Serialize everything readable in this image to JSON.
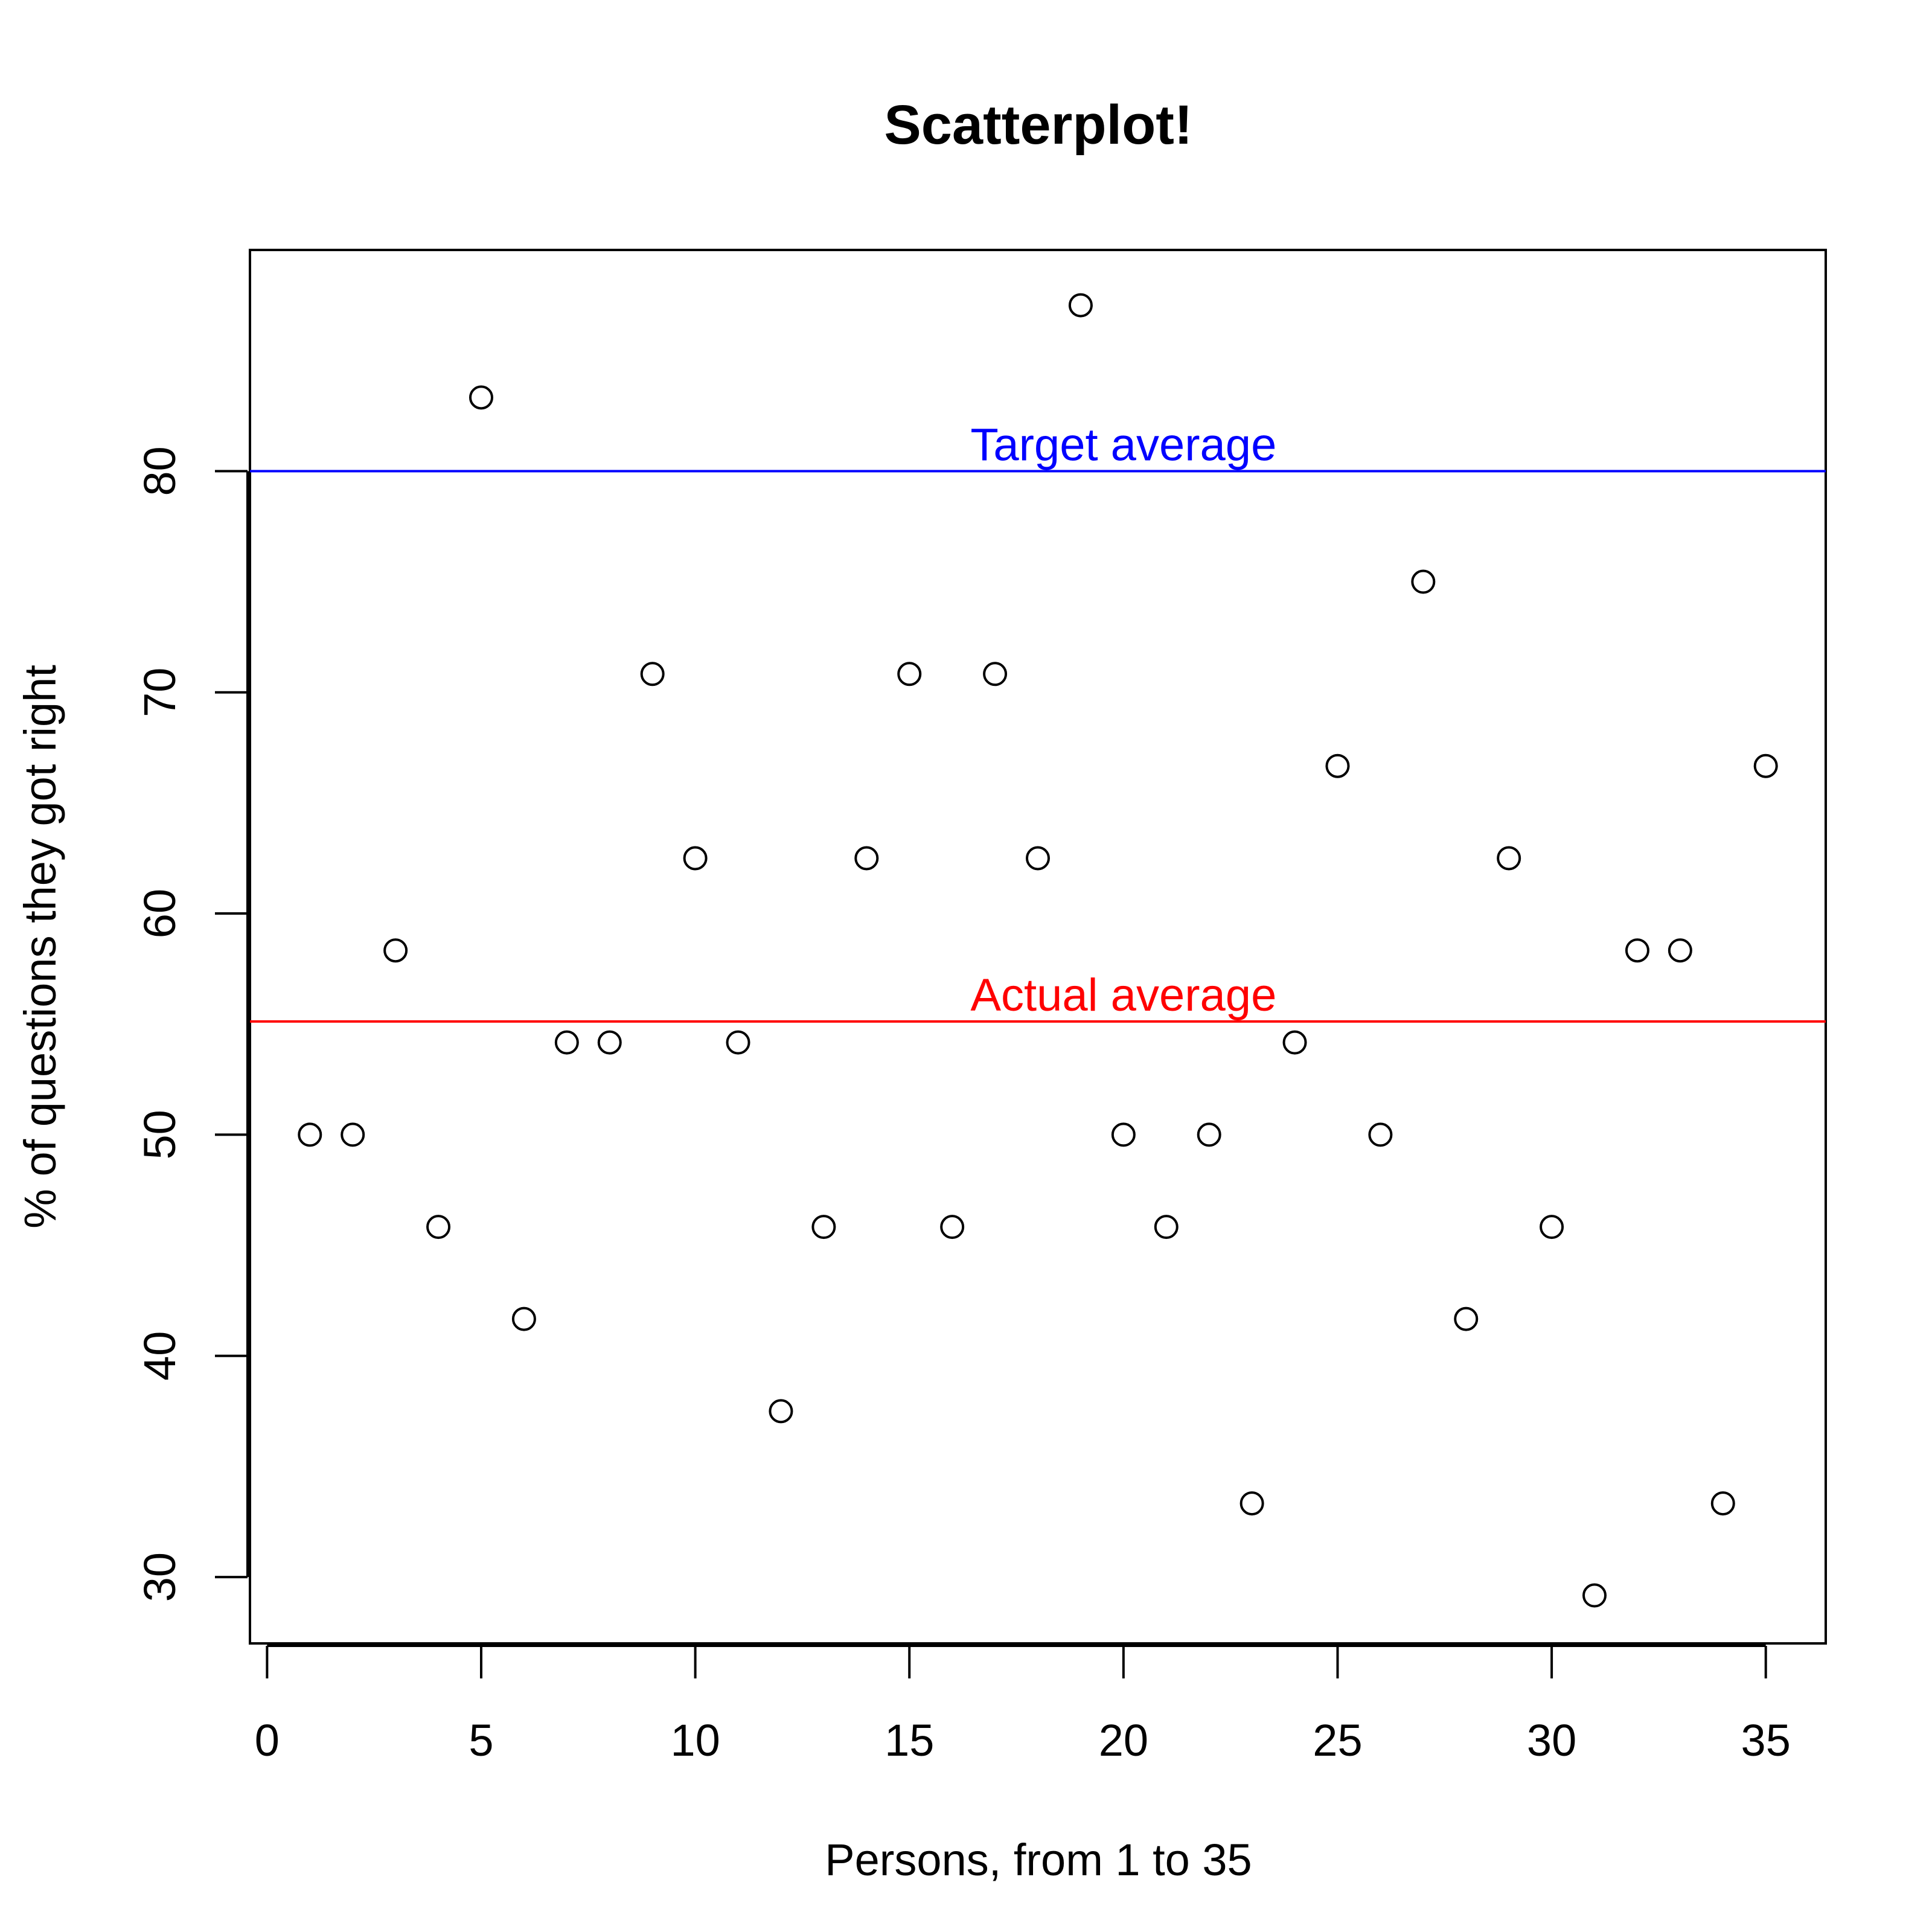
{
  "chart_data": {
    "type": "scatter",
    "title": "Scatterplot!",
    "xlabel": "Persons, from 1 to 35",
    "ylabel": "% of questions they got right",
    "xlim": [
      -0.4,
      36.4
    ],
    "ylim": [
      27,
      90
    ],
    "xticks": [
      0,
      5,
      10,
      15,
      20,
      25,
      30,
      35
    ],
    "yticks": [
      30,
      40,
      50,
      60,
      70,
      80
    ],
    "grid": false,
    "point_color": "#000000",
    "x": [
      1,
      2,
      3,
      4,
      5,
      6,
      7,
      8,
      9,
      10,
      11,
      12,
      13,
      14,
      15,
      16,
      17,
      18,
      19,
      20,
      21,
      22,
      23,
      24,
      25,
      26,
      27,
      28,
      29,
      30,
      31,
      32,
      33,
      34,
      35
    ],
    "y": [
      50.0,
      50.0,
      58.33,
      45.83,
      83.33,
      41.67,
      54.17,
      54.17,
      70.83,
      62.5,
      54.17,
      37.5,
      45.83,
      62.5,
      70.83,
      45.83,
      70.83,
      62.5,
      87.5,
      50.0,
      45.83,
      50.0,
      33.33,
      54.17,
      66.67,
      50.0,
      75.0,
      41.67,
      62.5,
      45.83,
      29.17,
      58.33,
      58.33,
      33.33,
      66.67
    ],
    "reference_lines": [
      {
        "label": "Target average",
        "value": 80,
        "color": "#0000ff"
      },
      {
        "label": "Actual average",
        "value": 55.12,
        "color": "#ff0000"
      }
    ]
  }
}
